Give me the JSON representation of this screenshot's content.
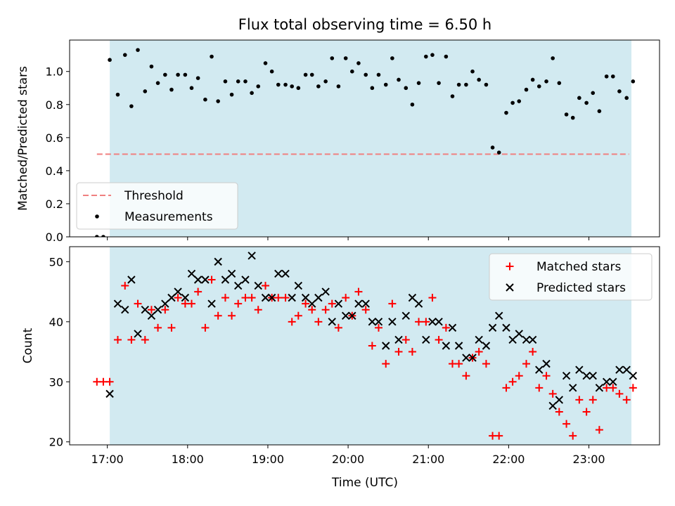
{
  "chart_data": [
    {
      "type": "scatter",
      "title": "Flux total observing time = 6.50 h",
      "xlabel": "",
      "ylabel": "Matched/Predicted stars",
      "xlim": [
        16.53,
        23.88
      ],
      "ylim": [
        0.0,
        1.19
      ],
      "x_ticks": [
        "17:00",
        "18:00",
        "19:00",
        "20:00",
        "21:00",
        "22:00",
        "23:00"
      ],
      "y_ticks": [
        "0.0",
        "0.2",
        "0.4",
        "0.6",
        "0.8",
        "1.0"
      ],
      "y_tick_values": [
        0.0,
        0.2,
        0.4,
        0.6,
        0.8,
        1.0
      ],
      "shaded_interval": [
        17.03,
        23.53
      ],
      "shade_color": "#add8e6",
      "legend": {
        "position": "lower-left",
        "entries": [
          "Threshold",
          "Measurements"
        ]
      },
      "threshold": {
        "name": "Threshold",
        "value": 0.5,
        "x_range": [
          16.87,
          23.5
        ],
        "color": "#f08080",
        "style": "dashed"
      },
      "series": [
        {
          "name": "Measurements",
          "color": "#000000",
          "marker": "dot",
          "points": [
            [
              16.87,
              0.0
            ],
            [
              16.95,
              0.0
            ],
            [
              17.03,
              1.07
            ],
            [
              17.13,
              0.86
            ],
            [
              17.22,
              1.1
            ],
            [
              17.3,
              0.79
            ],
            [
              17.38,
              1.13
            ],
            [
              17.47,
              0.88
            ],
            [
              17.55,
              1.03
            ],
            [
              17.63,
              0.93
            ],
            [
              17.72,
              0.98
            ],
            [
              17.8,
              0.89
            ],
            [
              17.88,
              0.98
            ],
            [
              17.97,
              0.98
            ],
            [
              18.05,
              0.9
            ],
            [
              18.13,
              0.96
            ],
            [
              18.22,
              0.83
            ],
            [
              18.3,
              1.09
            ],
            [
              18.38,
              0.82
            ],
            [
              18.47,
              0.94
            ],
            [
              18.55,
              0.86
            ],
            [
              18.63,
              0.94
            ],
            [
              18.72,
              0.94
            ],
            [
              18.8,
              0.87
            ],
            [
              18.88,
              0.91
            ],
            [
              18.97,
              1.05
            ],
            [
              19.05,
              1.0
            ],
            [
              19.13,
              0.92
            ],
            [
              19.22,
              0.92
            ],
            [
              19.3,
              0.91
            ],
            [
              19.38,
              0.9
            ],
            [
              19.47,
              0.98
            ],
            [
              19.55,
              0.98
            ],
            [
              19.63,
              0.91
            ],
            [
              19.72,
              0.94
            ],
            [
              19.8,
              1.08
            ],
            [
              19.88,
              0.91
            ],
            [
              19.97,
              1.08
            ],
            [
              20.05,
              1.0
            ],
            [
              20.13,
              1.05
            ],
            [
              20.22,
              0.98
            ],
            [
              20.3,
              0.9
            ],
            [
              20.38,
              0.98
            ],
            [
              20.47,
              0.92
            ],
            [
              20.55,
              1.08
            ],
            [
              20.63,
              0.95
            ],
            [
              20.72,
              0.9
            ],
            [
              20.8,
              0.8
            ],
            [
              20.88,
              0.93
            ],
            [
              20.97,
              1.09
            ],
            [
              21.05,
              1.1
            ],
            [
              21.13,
              0.93
            ],
            [
              21.22,
              1.09
            ],
            [
              21.3,
              0.85
            ],
            [
              21.38,
              0.92
            ],
            [
              21.47,
              0.92
            ],
            [
              21.55,
              1.0
            ],
            [
              21.63,
              0.95
            ],
            [
              21.72,
              0.92
            ],
            [
              21.8,
              0.54
            ],
            [
              21.88,
              0.51
            ],
            [
              21.97,
              0.75
            ],
            [
              22.05,
              0.81
            ],
            [
              22.13,
              0.82
            ],
            [
              22.22,
              0.89
            ],
            [
              22.3,
              0.95
            ],
            [
              22.38,
              0.91
            ],
            [
              22.47,
              0.94
            ],
            [
              22.55,
              1.08
            ],
            [
              22.63,
              0.93
            ],
            [
              22.72,
              0.74
            ],
            [
              22.8,
              0.72
            ],
            [
              22.88,
              0.84
            ],
            [
              22.97,
              0.81
            ],
            [
              23.05,
              0.87
            ],
            [
              23.13,
              0.76
            ],
            [
              23.22,
              0.97
            ],
            [
              23.3,
              0.97
            ],
            [
              23.38,
              0.88
            ],
            [
              23.47,
              0.84
            ],
            [
              23.55,
              0.94
            ]
          ]
        }
      ]
    },
    {
      "type": "scatter",
      "title": "",
      "xlabel": "Time (UTC)",
      "ylabel": "Count",
      "xlim": [
        16.53,
        23.88
      ],
      "ylim": [
        19.5,
        52.5
      ],
      "x_ticks": [
        "17:00",
        "18:00",
        "19:00",
        "20:00",
        "21:00",
        "22:00",
        "23:00"
      ],
      "x_tick_values": [
        17,
        18,
        19,
        20,
        21,
        22,
        23
      ],
      "y_ticks": [
        "20",
        "30",
        "40",
        "50"
      ],
      "y_tick_values": [
        20,
        30,
        40,
        50
      ],
      "shaded_interval": [
        17.03,
        23.53
      ],
      "shade_color": "#add8e6",
      "legend": {
        "position": "top-right",
        "entries": [
          "Matched stars",
          "Predicted stars"
        ]
      },
      "series": [
        {
          "name": "Matched stars",
          "color": "#ff0000",
          "marker": "plus",
          "points": [
            [
              16.87,
              30
            ],
            [
              16.95,
              30
            ],
            [
              17.03,
              30
            ],
            [
              17.13,
              37
            ],
            [
              17.22,
              46
            ],
            [
              17.3,
              37
            ],
            [
              17.38,
              43
            ],
            [
              17.47,
              37
            ],
            [
              17.55,
              42
            ],
            [
              17.63,
              39
            ],
            [
              17.72,
              42
            ],
            [
              17.8,
              39
            ],
            [
              17.88,
              44
            ],
            [
              17.97,
              43
            ],
            [
              18.05,
              43
            ],
            [
              18.13,
              45
            ],
            [
              18.22,
              39
            ],
            [
              18.3,
              47
            ],
            [
              18.38,
              41
            ],
            [
              18.47,
              44
            ],
            [
              18.55,
              41
            ],
            [
              18.63,
              43
            ],
            [
              18.72,
              44
            ],
            [
              18.8,
              44
            ],
            [
              18.88,
              42
            ],
            [
              18.97,
              46
            ],
            [
              19.05,
              44
            ],
            [
              19.13,
              44
            ],
            [
              19.22,
              44
            ],
            [
              19.3,
              40
            ],
            [
              19.38,
              41
            ],
            [
              19.47,
              43
            ],
            [
              19.55,
              42
            ],
            [
              19.63,
              40
            ],
            [
              19.72,
              42
            ],
            [
              19.8,
              43
            ],
            [
              19.88,
              39
            ],
            [
              19.97,
              44
            ],
            [
              20.05,
              41
            ],
            [
              20.13,
              45
            ],
            [
              20.22,
              42
            ],
            [
              20.3,
              36
            ],
            [
              20.38,
              39
            ],
            [
              20.47,
              33
            ],
            [
              20.55,
              43
            ],
            [
              20.63,
              35
            ],
            [
              20.72,
              37
            ],
            [
              20.8,
              35
            ],
            [
              20.88,
              40
            ],
            [
              20.97,
              40
            ],
            [
              21.05,
              44
            ],
            [
              21.13,
              37
            ],
            [
              21.22,
              39
            ],
            [
              21.3,
              33
            ],
            [
              21.38,
              33
            ],
            [
              21.47,
              31
            ],
            [
              21.55,
              34
            ],
            [
              21.63,
              35
            ],
            [
              21.72,
              33
            ],
            [
              21.8,
              21
            ],
            [
              21.88,
              21
            ],
            [
              21.97,
              29
            ],
            [
              22.05,
              30
            ],
            [
              22.13,
              31
            ],
            [
              22.22,
              33
            ],
            [
              22.3,
              35
            ],
            [
              22.38,
              29
            ],
            [
              22.47,
              31
            ],
            [
              22.55,
              28
            ],
            [
              22.63,
              25
            ],
            [
              22.72,
              23
            ],
            [
              22.8,
              21
            ],
            [
              22.88,
              27
            ],
            [
              22.97,
              25
            ],
            [
              23.05,
              27
            ],
            [
              23.13,
              22
            ],
            [
              23.22,
              29
            ],
            [
              23.3,
              29
            ],
            [
              23.38,
              28
            ],
            [
              23.47,
              27
            ],
            [
              23.55,
              29
            ]
          ]
        },
        {
          "name": "Predicted stars",
          "color": "#000000",
          "marker": "x",
          "points": [
            [
              17.03,
              28
            ],
            [
              17.13,
              43
            ],
            [
              17.22,
              42
            ],
            [
              17.3,
              47
            ],
            [
              17.38,
              38
            ],
            [
              17.47,
              42
            ],
            [
              17.55,
              41
            ],
            [
              17.63,
              42
            ],
            [
              17.72,
              43
            ],
            [
              17.8,
              44
            ],
            [
              17.88,
              45
            ],
            [
              17.97,
              44
            ],
            [
              18.05,
              48
            ],
            [
              18.13,
              47
            ],
            [
              18.22,
              47
            ],
            [
              18.3,
              43
            ],
            [
              18.38,
              50
            ],
            [
              18.47,
              47
            ],
            [
              18.55,
              48
            ],
            [
              18.63,
              46
            ],
            [
              18.72,
              47
            ],
            [
              18.8,
              51
            ],
            [
              18.88,
              46
            ],
            [
              18.97,
              44
            ],
            [
              19.05,
              44
            ],
            [
              19.13,
              48
            ],
            [
              19.22,
              48
            ],
            [
              19.3,
              44
            ],
            [
              19.38,
              46
            ],
            [
              19.47,
              44
            ],
            [
              19.55,
              43
            ],
            [
              19.63,
              44
            ],
            [
              19.72,
              45
            ],
            [
              19.8,
              40
            ],
            [
              19.88,
              43
            ],
            [
              19.97,
              41
            ],
            [
              20.05,
              41
            ],
            [
              20.13,
              43
            ],
            [
              20.22,
              43
            ],
            [
              20.3,
              40
            ],
            [
              20.38,
              40
            ],
            [
              20.47,
              36
            ],
            [
              20.55,
              40
            ],
            [
              20.63,
              37
            ],
            [
              20.72,
              41
            ],
            [
              20.8,
              44
            ],
            [
              20.88,
              43
            ],
            [
              20.97,
              37
            ],
            [
              21.05,
              40
            ],
            [
              21.13,
              40
            ],
            [
              21.22,
              36
            ],
            [
              21.3,
              39
            ],
            [
              21.38,
              36
            ],
            [
              21.47,
              34
            ],
            [
              21.55,
              34
            ],
            [
              21.63,
              37
            ],
            [
              21.72,
              36
            ],
            [
              21.8,
              39
            ],
            [
              21.88,
              41
            ],
            [
              21.97,
              39
            ],
            [
              22.05,
              37
            ],
            [
              22.13,
              38
            ],
            [
              22.22,
              37
            ],
            [
              22.3,
              37
            ],
            [
              22.38,
              32
            ],
            [
              22.47,
              33
            ],
            [
              22.55,
              26
            ],
            [
              22.63,
              27
            ],
            [
              22.72,
              31
            ],
            [
              22.8,
              29
            ],
            [
              22.88,
              32
            ],
            [
              22.97,
              31
            ],
            [
              23.05,
              31
            ],
            [
              23.13,
              29
            ],
            [
              23.22,
              30
            ],
            [
              23.3,
              30
            ],
            [
              23.38,
              32
            ],
            [
              23.47,
              32
            ],
            [
              23.55,
              31
            ]
          ]
        }
      ]
    }
  ]
}
